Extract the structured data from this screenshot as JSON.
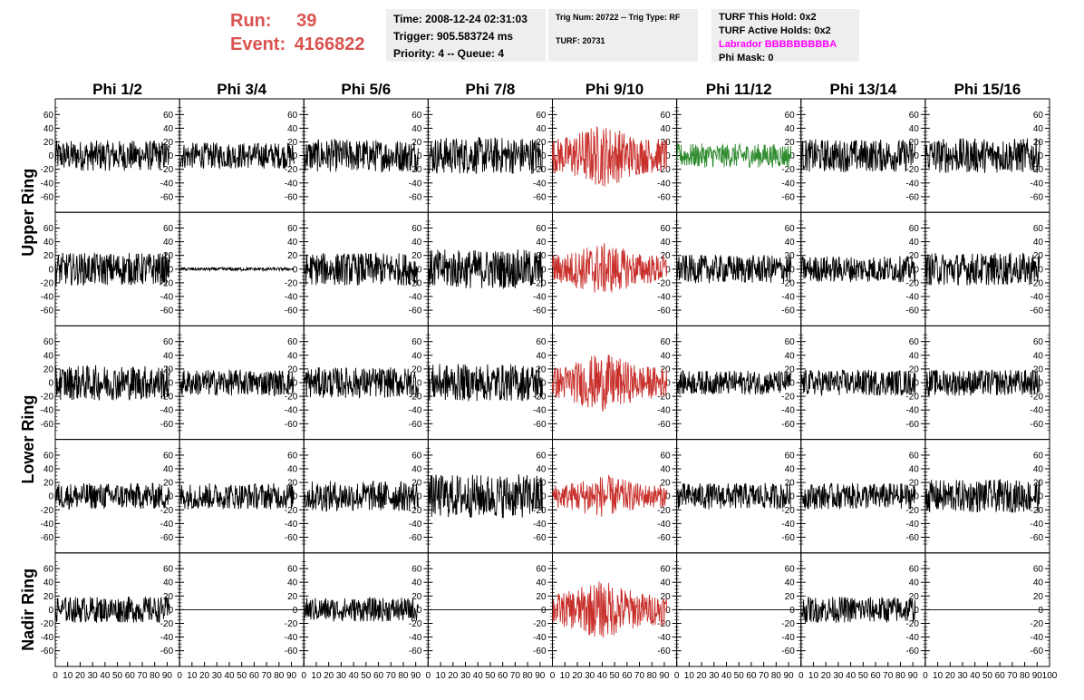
{
  "header": {
    "run_label": "Run:",
    "run_value": "39",
    "event_label": "Event:",
    "event_value": "4166822",
    "run_color": "#d9534f"
  },
  "info_time": {
    "time": "Time: 2008-12-24 02:31:03",
    "trigger": "Trigger: 905.583724 ms",
    "priority": "Priority: 4 -- Queue: 4"
  },
  "info_trig": {
    "trig": "Trig Num: 20722 -- Trig Type: RF",
    "turf": "TURF: 20731"
  },
  "info_turf": {
    "this_hold": "TURF This Hold: 0x2",
    "active_holds": "TURF Active Holds: 0x2",
    "labrador": "Labrador BBBBBBBBBA",
    "phi_mask": "Phi Mask: 0"
  },
  "colors": {
    "normal": "#000000",
    "red": "#c8302c",
    "green": "#2e8b2e",
    "labrador": "#ff00ff"
  },
  "chart_data": {
    "type": "line",
    "columns": [
      "Phi 1/2",
      "Phi 3/4",
      "Phi 5/6",
      "Phi 7/8",
      "Phi 9/10",
      "Phi 11/12",
      "Phi 13/14",
      "Phi 15/16"
    ],
    "rows": [
      "Upper Ring",
      "",
      "Lower Ring",
      "",
      "Nadir Ring"
    ],
    "ylim": [
      -75,
      75
    ],
    "yticks": [
      -60,
      -40,
      -20,
      0,
      20,
      40,
      60
    ],
    "xlim": [
      0,
      100
    ],
    "xticks": [
      0,
      10,
      20,
      30,
      40,
      50,
      60,
      70,
      80,
      90,
      100
    ],
    "grid": false,
    "legend": "none",
    "panels": [
      [
        {
          "amp": 14,
          "len": 92,
          "color": "normal"
        },
        {
          "amp": 12,
          "len": 92,
          "color": "normal"
        },
        {
          "amp": 15,
          "len": 92,
          "color": "normal"
        },
        {
          "amp": 17,
          "len": 92,
          "color": "normal"
        },
        {
          "amp": 24,
          "len": 92,
          "color": "red"
        },
        {
          "amp": 11,
          "len": 92,
          "color": "green"
        },
        {
          "amp": 15,
          "len": 92,
          "color": "normal"
        },
        {
          "amp": 16,
          "len": 92,
          "color": "normal"
        }
      ],
      [
        {
          "amp": 15,
          "len": 92,
          "color": "normal"
        },
        {
          "amp": 1.5,
          "len": 92,
          "color": "normal"
        },
        {
          "amp": 15,
          "len": 92,
          "color": "normal"
        },
        {
          "amp": 18,
          "len": 92,
          "color": "normal"
        },
        {
          "amp": 20,
          "len": 92,
          "color": "red"
        },
        {
          "amp": 13,
          "len": 92,
          "color": "normal"
        },
        {
          "amp": 12,
          "len": 92,
          "color": "normal"
        },
        {
          "amp": 15,
          "len": 92,
          "color": "normal"
        }
      ],
      [
        {
          "amp": 16,
          "len": 92,
          "color": "normal"
        },
        {
          "amp": 12,
          "len": 92,
          "color": "normal"
        },
        {
          "amp": 14,
          "len": 92,
          "color": "normal"
        },
        {
          "amp": 17,
          "len": 92,
          "color": "normal"
        },
        {
          "amp": 22,
          "len": 92,
          "color": "red"
        },
        {
          "amp": 11,
          "len": 92,
          "color": "normal"
        },
        {
          "amp": 12,
          "len": 92,
          "color": "normal"
        },
        {
          "amp": 12,
          "len": 92,
          "color": "normal"
        }
      ],
      [
        {
          "amp": 12,
          "len": 92,
          "color": "normal"
        },
        {
          "amp": 12,
          "len": 92,
          "color": "normal"
        },
        {
          "amp": 14,
          "len": 92,
          "color": "normal"
        },
        {
          "amp": 20,
          "len": 92,
          "color": "normal"
        },
        {
          "amp": 16,
          "len": 92,
          "color": "red"
        },
        {
          "amp": 12,
          "len": 92,
          "color": "normal"
        },
        {
          "amp": 12,
          "len": 92,
          "color": "normal"
        },
        {
          "amp": 15,
          "len": 92,
          "color": "normal"
        }
      ],
      [
        {
          "amp": 12,
          "len": 92,
          "color": "normal"
        },
        {
          "amp": 0,
          "len": 100,
          "color": "normal"
        },
        {
          "amp": 11,
          "len": 92,
          "color": "normal"
        },
        {
          "amp": 0,
          "len": 100,
          "color": "normal"
        },
        {
          "amp": 22,
          "len": 92,
          "color": "red"
        },
        {
          "amp": 0,
          "len": 100,
          "color": "normal"
        },
        {
          "amp": 12,
          "len": 92,
          "color": "normal"
        },
        {
          "amp": 0,
          "len": 100,
          "color": "normal"
        }
      ]
    ]
  }
}
